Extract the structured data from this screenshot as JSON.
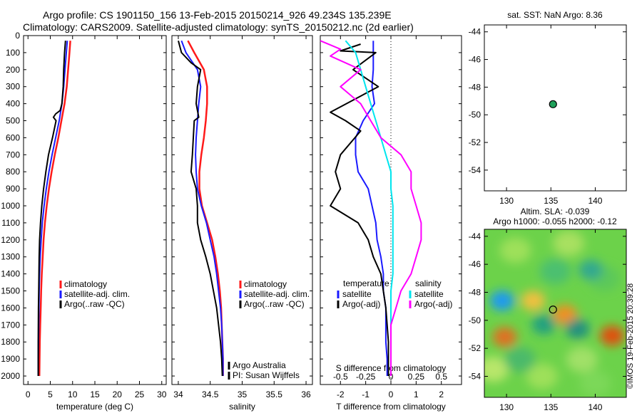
{
  "header": {
    "line1": "Argo profile: CS 1901150_156 13-Feb-2015 20150214_926 49.234S 135.239E",
    "line2": "Climatology: CARS2009. Satellite-adjusted climatology: synTS_20150212.nc (2d earlier)"
  },
  "stamp": "©IMOS 19-Feb-2015 20:39:28",
  "colors": {
    "climatology": "#ff1a1a",
    "satellite": "#1a1aff",
    "argo": "#000000",
    "salinity_satellite": "#00e5ee",
    "salinity_argo": "#ff00ff",
    "float_marker": "#1fa05a"
  },
  "chart_data": [
    {
      "type": "line",
      "panel": "temperature",
      "xlabel": "temperature (deg C)",
      "ylabel": "",
      "xlim": [
        -1,
        31
      ],
      "ylim": [
        2050,
        0
      ],
      "xticks": [
        "0",
        "5",
        "10",
        "15",
        "20",
        "25",
        "30"
      ],
      "yticks": [
        "0",
        "100",
        "200",
        "300",
        "400",
        "500",
        "600",
        "700",
        "800",
        "900",
        "1000",
        "1100",
        "1200",
        "1300",
        "1400",
        "1500",
        "1600",
        "1700",
        "1800",
        "1900",
        "2000"
      ],
      "legend": [
        "climatology",
        "satellite-adj. clim.",
        "Argo(..raw -QC)"
      ],
      "legend_position": "lower-center",
      "series": [
        {
          "name": "climatology",
          "x": [
            9.5,
            9.3,
            9.0,
            8.7,
            8.2,
            7.5,
            6.8,
            6.0,
            5.3,
            4.7,
            4.2,
            3.8,
            3.5,
            3.3,
            3.1,
            2.95,
            2.85,
            2.75,
            2.65,
            2.6,
            2.55
          ],
          "y": [
            30,
            100,
            200,
            300,
            400,
            500,
            600,
            700,
            800,
            900,
            1000,
            1100,
            1200,
            1300,
            1400,
            1500,
            1600,
            1700,
            1800,
            1900,
            2000
          ]
        },
        {
          "name": "satellite-adj. clim.",
          "x": [
            8.8,
            8.6,
            8.3,
            8.0,
            7.6,
            7.0,
            6.2,
            5.4,
            4.7,
            4.1,
            3.6,
            3.2,
            2.95,
            2.75,
            2.6,
            2.5,
            2.45,
            2.4,
            2.35,
            2.3,
            2.3
          ],
          "y": [
            30,
            100,
            200,
            300,
            400,
            500,
            600,
            700,
            800,
            900,
            1000,
            1100,
            1200,
            1300,
            1400,
            1500,
            1600,
            1700,
            1800,
            1900,
            2000
          ]
        },
        {
          "name": "Argo(..raw -QC)",
          "x": [
            8.4,
            8.2,
            8.0,
            7.9,
            7.6,
            7.2,
            6.2,
            5.7,
            6.3,
            5.5,
            4.6,
            4.0,
            3.5,
            3.1,
            2.8,
            2.6,
            2.5,
            2.45,
            2.4,
            2.35,
            2.3,
            2.3
          ],
          "y": [
            30,
            100,
            200,
            300,
            400,
            440,
            460,
            480,
            500,
            600,
            700,
            800,
            900,
            1000,
            1100,
            1200,
            1300,
            1400,
            1500,
            1600,
            1800,
            2000
          ]
        }
      ]
    },
    {
      "type": "line",
      "panel": "salinity",
      "xlabel": "salinity",
      "xlim": [
        33.9,
        36.1
      ],
      "ylim": [
        2050,
        0
      ],
      "xticks": [
        "34",
        "34.5",
        "35",
        "35.5",
        "36"
      ],
      "legend": [
        "climatology",
        "satellite-adj. clim.",
        "Argo(..raw -QC)"
      ],
      "legend_position": "lower-right",
      "annotations": [
        "Argo Australia",
        "PI: Susan Wijffels"
      ],
      "series": [
        {
          "name": "climatology",
          "x": [
            34.15,
            34.25,
            34.4,
            34.45,
            34.45,
            34.43,
            34.4,
            34.36,
            34.33,
            34.33,
            34.37,
            34.45,
            34.53,
            34.58,
            34.62,
            34.65,
            34.67,
            34.68,
            34.69,
            34.7,
            34.7
          ],
          "y": [
            30,
            100,
            200,
            300,
            400,
            500,
            600,
            700,
            800,
            900,
            1000,
            1100,
            1200,
            1300,
            1400,
            1500,
            1600,
            1700,
            1800,
            1900,
            2000
          ]
        },
        {
          "name": "satellite-adj. clim.",
          "x": [
            34.05,
            34.12,
            34.3,
            34.35,
            34.32,
            34.3,
            34.28,
            34.27,
            34.28,
            34.3,
            34.36,
            34.44,
            34.5,
            34.56,
            34.6,
            34.63,
            34.66,
            34.68,
            34.69,
            34.7,
            34.7
          ],
          "y": [
            30,
            100,
            200,
            300,
            400,
            500,
            600,
            700,
            800,
            900,
            1000,
            1100,
            1200,
            1300,
            1400,
            1500,
            1600,
            1700,
            1800,
            1900,
            2000
          ]
        },
        {
          "name": "Argo(..raw -QC)",
          "x": [
            34.0,
            34.05,
            34.2,
            34.35,
            34.3,
            34.28,
            34.32,
            34.25,
            34.22,
            34.2,
            34.28,
            34.3,
            34.3,
            34.35,
            34.43,
            34.5,
            34.55,
            34.6,
            34.63,
            34.66,
            34.68,
            34.69
          ],
          "y": [
            30,
            100,
            160,
            200,
            300,
            400,
            480,
            500,
            700,
            800,
            900,
            1000,
            1100,
            1200,
            1300,
            1400,
            1500,
            1600,
            1700,
            1800,
            1900,
            2000
          ]
        }
      ]
    },
    {
      "type": "line",
      "panel": "difference",
      "xlabel": "T difference from climatology",
      "xlabel_top": "S difference from climatology",
      "xlim": [
        -2.8,
        2.8
      ],
      "ylim": [
        2050,
        0
      ],
      "xticks": [
        "-2",
        "-1",
        "0",
        "1",
        "2"
      ],
      "xticks_salinity": [
        "-0.5",
        "-0.25",
        "0",
        "0.25",
        "0.5"
      ],
      "legend_titles": [
        "temperature",
        "salinity"
      ],
      "legend": [
        "satellite",
        "Argo(-adj)",
        "satellite",
        "Argo(-adj)"
      ],
      "series": [
        {
          "name": "temperature satellite",
          "x": [
            -0.7,
            -0.7,
            -0.7,
            -0.75,
            -0.65,
            -1.1,
            -1.4,
            -1.4,
            -1.3,
            -0.9,
            -0.75,
            -0.6,
            -0.55,
            -0.4,
            -0.3,
            -0.3,
            -0.2,
            -0.2,
            -0.2,
            -0.15,
            -0.15
          ],
          "y": [
            30,
            100,
            200,
            300,
            400,
            500,
            600,
            700,
            800,
            900,
            1000,
            1100,
            1200,
            1300,
            1400,
            1500,
            1600,
            1700,
            1800,
            1900,
            2000
          ]
        },
        {
          "name": "temperature Argo(-adj)",
          "x": [
            -1.2,
            -2.0,
            -0.6,
            -1.5,
            -0.5,
            -2.4,
            -1.8,
            -1.2,
            -2.0,
            -2.2,
            -2.0,
            -2.4,
            -1.3,
            -0.9,
            -0.7,
            -0.4,
            -0.3,
            -0.2,
            -0.15,
            -0.1,
            -0.1
          ],
          "y": [
            50,
            90,
            100,
            200,
            300,
            450,
            500,
            560,
            700,
            800,
            900,
            1000,
            1100,
            1200,
            1300,
            1400,
            1500,
            1600,
            1700,
            1800,
            2000
          ]
        },
        {
          "name": "salinity satellite",
          "x": [
            -0.45,
            -0.35,
            -0.3,
            -0.25,
            -0.2,
            -0.15,
            -0.1,
            -0.05,
            0.0,
            0.0,
            0.02,
            0.02,
            0.02,
            0.02,
            0.02,
            0.0,
            0.0,
            0.0,
            0.0,
            0.0
          ],
          "y": [
            30,
            100,
            200,
            300,
            400,
            500,
            600,
            700,
            800,
            900,
            1000,
            1100,
            1200,
            1300,
            1400,
            1500,
            1600,
            1700,
            1800,
            2000
          ]
        },
        {
          "name": "salinity Argo(-adj)",
          "x": [
            -0.7,
            -0.5,
            -0.6,
            -0.3,
            -0.5,
            -0.3,
            -0.2,
            -0.1,
            0.1,
            0.2,
            0.2,
            0.25,
            0.3,
            0.3,
            0.25,
            0.2,
            0.1,
            0.05,
            0.0,
            0.0,
            0.0
          ],
          "y": [
            30,
            80,
            120,
            200,
            300,
            400,
            500,
            600,
            700,
            800,
            900,
            1000,
            1100,
            1200,
            1300,
            1400,
            1500,
            1600,
            1700,
            1800,
            2000
          ]
        }
      ]
    },
    {
      "type": "scatter",
      "panel": "sst-location",
      "title": "sat. SST: NaN Argo: 8.36",
      "xlim": [
        127.5,
        143.5
      ],
      "ylim": [
        -55.5,
        -43.5
      ],
      "xticks": [
        "130",
        "135",
        "140"
      ],
      "yticks": [
        "-44",
        "-46",
        "-48",
        "-50",
        "-52",
        "-54"
      ],
      "points": [
        {
          "x": 135.239,
          "y": -49.234
        }
      ]
    },
    {
      "type": "heatmap",
      "panel": "altimetry",
      "title_line1": "Altim. SLA: -0.039",
      "title_line2": "Argo h1000: -0.055 h2000: -0.12",
      "xlim": [
        127.5,
        143.5
      ],
      "ylim": [
        -55.5,
        -43.5
      ],
      "xticks": [
        "130",
        "135",
        "140"
      ],
      "yticks": [
        "-44",
        "-46",
        "-48",
        "-50",
        "-52",
        "-54"
      ],
      "points": [
        {
          "x": 135.239,
          "y": -49.234
        }
      ],
      "features": [
        {
          "lon": 129.5,
          "lat": -48.6,
          "kind": "low",
          "color": "#1a9af0"
        },
        {
          "lon": 129.8,
          "lat": -51.2,
          "kind": "high",
          "color": "#e07020"
        },
        {
          "lon": 133.0,
          "lat": -48.6,
          "kind": "high",
          "color": "#f0c040"
        },
        {
          "lon": 134.2,
          "lat": -50.3,
          "kind": "low",
          "color": "#20a080"
        },
        {
          "lon": 136.6,
          "lat": -49.6,
          "kind": "high",
          "color": "#f09020"
        },
        {
          "lon": 138.0,
          "lat": -50.6,
          "kind": "low",
          "color": "#209080"
        },
        {
          "lon": 141.9,
          "lat": -51.1,
          "kind": "high",
          "color": "#e05010"
        },
        {
          "lon": 139.5,
          "lat": -46.4,
          "kind": "low",
          "color": "#30a890"
        }
      ]
    }
  ]
}
